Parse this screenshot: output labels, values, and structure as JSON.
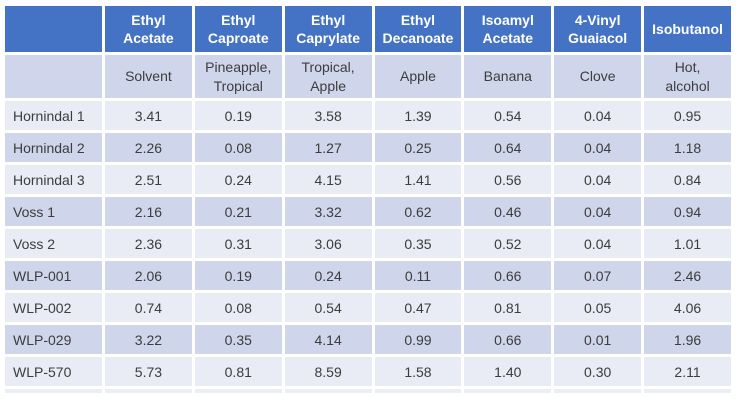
{
  "table": {
    "header": [
      "Ethyl Acetate",
      "Ethyl Caproate",
      "Ethyl Caprylate",
      "Ethyl Decanoate",
      "Isoamyl Acetate",
      "4-Vinyl Guaiacol",
      "Isobutanol"
    ],
    "descriptors": [
      "Solvent",
      "Pineapple, Tropical",
      "Tropical, Apple",
      "Apple",
      "Banana",
      "Clove",
      "Hot, alcohol"
    ],
    "rows": [
      {
        "label": "Hornindal 1",
        "values": [
          "3.41",
          "0.19",
          "3.58",
          "1.39",
          "0.54",
          "0.04",
          "0.95"
        ]
      },
      {
        "label": "Hornindal 2",
        "values": [
          "2.26",
          "0.08",
          "1.27",
          "0.25",
          "0.64",
          "0.04",
          "1.18"
        ]
      },
      {
        "label": "Hornindal 3",
        "values": [
          "2.51",
          "0.24",
          "4.15",
          "1.41",
          "0.56",
          "0.04",
          "0.84"
        ]
      },
      {
        "label": "Voss 1",
        "values": [
          "2.16",
          "0.21",
          "3.32",
          "0.62",
          "0.46",
          "0.04",
          "0.94"
        ]
      },
      {
        "label": "Voss 2",
        "values": [
          "2.36",
          "0.31",
          "3.06",
          "0.35",
          "0.52",
          "0.04",
          "1.01"
        ]
      },
      {
        "label": "WLP-001",
        "values": [
          "2.06",
          "0.19",
          "0.24",
          "0.11",
          "0.66",
          "0.07",
          "2.46"
        ]
      },
      {
        "label": "WLP-002",
        "values": [
          "0.74",
          "0.08",
          "0.54",
          "0.47",
          "0.81",
          "0.05",
          "4.06"
        ]
      },
      {
        "label": "WLP-029",
        "values": [
          "3.22",
          "0.35",
          "4.14",
          "0.99",
          "0.66",
          "0.01",
          "1.96"
        ]
      },
      {
        "label": "WLP-570",
        "values": [
          "5.73",
          "0.81",
          "8.59",
          "1.58",
          "1.40",
          "0.30",
          "2.11"
        ]
      }
    ]
  },
  "chart_data": {
    "type": "table",
    "title": "",
    "columns": [
      "Ethyl Acetate",
      "Ethyl Caproate",
      "Ethyl Caprylate",
      "Ethyl Decanoate",
      "Isoamyl Acetate",
      "4-Vinyl Guaiacol",
      "Isobutanol"
    ],
    "column_flavor_descriptors": [
      "Solvent",
      "Pineapple, Tropical",
      "Tropical, Apple",
      "Apple",
      "Banana",
      "Clove",
      "Hot, alcohol"
    ],
    "row_labels": [
      "Hornindal 1",
      "Hornindal 2",
      "Hornindal 3",
      "Voss 1",
      "Voss 2",
      "WLP-001",
      "WLP-002",
      "WLP-029",
      "WLP-570"
    ],
    "values": [
      [
        3.41,
        0.19,
        3.58,
        1.39,
        0.54,
        0.04,
        0.95
      ],
      [
        2.26,
        0.08,
        1.27,
        0.25,
        0.64,
        0.04,
        1.18
      ],
      [
        2.51,
        0.24,
        4.15,
        1.41,
        0.56,
        0.04,
        0.84
      ],
      [
        2.16,
        0.21,
        3.32,
        0.62,
        0.46,
        0.04,
        0.94
      ],
      [
        2.36,
        0.31,
        3.06,
        0.35,
        0.52,
        0.04,
        1.01
      ],
      [
        2.06,
        0.19,
        0.24,
        0.11,
        0.66,
        0.07,
        2.46
      ],
      [
        0.74,
        0.08,
        0.54,
        0.47,
        0.81,
        0.05,
        4.06
      ],
      [
        3.22,
        0.35,
        4.14,
        0.99,
        0.66,
        0.01,
        1.96
      ],
      [
        5.73,
        0.81,
        8.59,
        1.58,
        1.4,
        0.3,
        2.11
      ]
    ],
    "layout": {
      "banded_rows": true,
      "legend": "none",
      "grid": "white cell borders"
    }
  },
  "colors": {
    "header_bg": "#4472C4",
    "header_text": "#FFFFFF",
    "band_dark": "#CFD5EA",
    "band_light": "#E9EBF5",
    "body_text": "#3D3D3D",
    "cell_border": "#FFFFFF"
  }
}
